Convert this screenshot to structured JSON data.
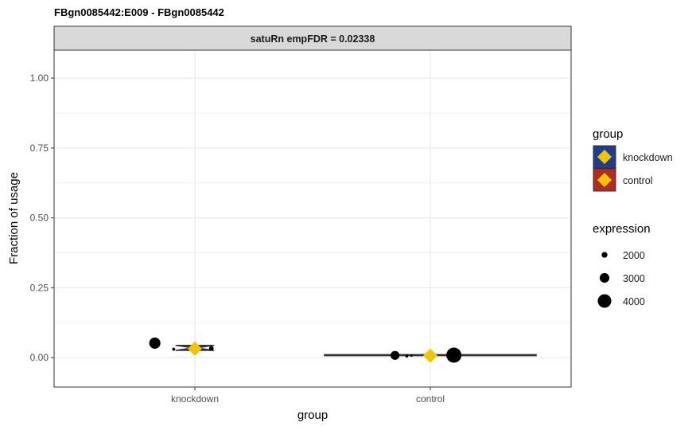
{
  "chart_data": {
    "type": "violin",
    "title": "FBgn0085442:E009  -  FBgn0085442",
    "facet_label": "satuRn empFDR = 0.02338",
    "xlabel": "group",
    "ylabel": "Fraction of usage",
    "categories": [
      "knockdown",
      "control"
    ],
    "ylim": [
      -0.105,
      1.1
    ],
    "y_ticks": [
      0.0,
      0.25,
      0.5,
      0.75,
      1.0
    ],
    "y_tick_labels": [
      "0.00",
      "0.25",
      "0.50",
      "0.75",
      "1.00"
    ],
    "grid": true,
    "violins": [
      {
        "group": "knockdown",
        "center": 0.035,
        "spread": 0.018,
        "half_width": 0.08
      },
      {
        "group": "control",
        "center": 0.009,
        "spread": 0.003,
        "half_width": 0.45
      }
    ],
    "points": [
      {
        "group": "knockdown",
        "x_offset": -0.17,
        "y": 0.052,
        "expression": 3400
      },
      {
        "group": "knockdown",
        "x_offset": -0.09,
        "y": 0.03,
        "expression": 1300
      },
      {
        "group": "knockdown",
        "x_offset": 0.07,
        "y": 0.033,
        "expression": 1700
      },
      {
        "group": "control",
        "x_offset": -0.15,
        "y": 0.008,
        "expression": 2800
      },
      {
        "group": "control",
        "x_offset": -0.1,
        "y": 0.006,
        "expression": 1300
      },
      {
        "group": "control",
        "x_offset": -0.08,
        "y": 0.007,
        "expression": 1100
      },
      {
        "group": "control",
        "x_offset": 0.1,
        "y": 0.009,
        "expression": 4400
      }
    ],
    "means": [
      {
        "group": "knockdown",
        "y": 0.032
      },
      {
        "group": "control",
        "y": 0.007
      }
    ],
    "legend_position": "right",
    "legend": {
      "group": {
        "title": "group",
        "entries": [
          {
            "label": "knockdown",
            "color": "#213D8F"
          },
          {
            "label": "control",
            "color": "#B22B20"
          }
        ]
      },
      "expression": {
        "title": "expression",
        "entries": [
          {
            "label": "2000",
            "value": 2000
          },
          {
            "label": "3000",
            "value": 3000
          },
          {
            "label": "4000",
            "value": 4000
          }
        ]
      }
    },
    "colors": {
      "mean_marker": "#F2C500",
      "violin_outline": "#333333",
      "strip_bg": "#D9D9D9",
      "grid": "#EBEBEB",
      "panel_border": "#333333",
      "points": "#000000"
    }
  }
}
